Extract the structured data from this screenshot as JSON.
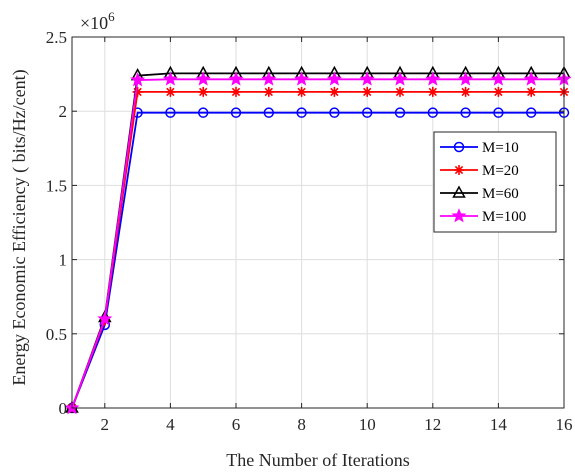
{
  "chart_data": {
    "type": "line",
    "xlabel": "The Number of Iterations",
    "ylabel": "Energy Economic  Efficiency ( bits/Hz/cent)",
    "y_multiplier_base": "×10",
    "y_multiplier_exp": "6",
    "xlim": [
      1,
      16
    ],
    "ylim": [
      0,
      2.5
    ],
    "x_ticks": [
      2,
      4,
      6,
      8,
      10,
      12,
      14,
      16
    ],
    "y_ticks": [
      0,
      0.5,
      1,
      1.5,
      2,
      2.5
    ],
    "y_tick_labels": [
      "0",
      "0.5",
      "1",
      "1.5",
      "2",
      "2.5"
    ],
    "grid": true,
    "legend_position": "right",
    "x": [
      1,
      2,
      3,
      4,
      5,
      6,
      7,
      8,
      9,
      10,
      11,
      12,
      13,
      14,
      15,
      16
    ],
    "series": [
      {
        "name": "M=10",
        "color": "#0000ff",
        "marker": "circle",
        "values": [
          0,
          0.56,
          1.99,
          1.99,
          1.99,
          1.99,
          1.99,
          1.99,
          1.99,
          1.99,
          1.99,
          1.99,
          1.99,
          1.99,
          1.99,
          1.99
        ]
      },
      {
        "name": "M=20",
        "color": "#ff0000",
        "marker": "asterisk",
        "values": [
          0,
          0.59,
          2.13,
          2.13,
          2.13,
          2.13,
          2.13,
          2.13,
          2.13,
          2.13,
          2.13,
          2.13,
          2.13,
          2.13,
          2.13,
          2.13
        ]
      },
      {
        "name": "M=60",
        "color": "#000000",
        "marker": "triangle",
        "values": [
          0,
          0.61,
          2.24,
          2.255,
          2.255,
          2.255,
          2.255,
          2.255,
          2.255,
          2.255,
          2.255,
          2.255,
          2.255,
          2.255,
          2.255,
          2.255
        ]
      },
      {
        "name": "M=100",
        "color": "#ff00ff",
        "marker": "star",
        "values": [
          0,
          0.6,
          2.21,
          2.215,
          2.215,
          2.215,
          2.215,
          2.215,
          2.215,
          2.215,
          2.215,
          2.215,
          2.215,
          2.215,
          2.215,
          2.215
        ]
      }
    ]
  }
}
